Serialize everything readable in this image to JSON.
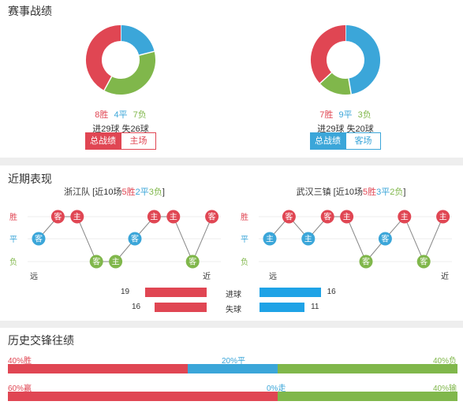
{
  "section1": {
    "title": "赛事战绩",
    "left": {
      "wins": "8胜",
      "draws": "4平",
      "losses": "7负",
      "goals": "进29球 失26球",
      "w": 8,
      "d": 4,
      "l": 7,
      "tab_total": "总战绩",
      "tab_venue": "主场"
    },
    "right": {
      "wins": "7胜",
      "draws": "9平",
      "losses": "3负",
      "goals": "进29球 失20球",
      "w": 7,
      "d": 9,
      "l": 3,
      "tab_total": "总战绩",
      "tab_venue": "客场"
    }
  },
  "section2": {
    "title": "近期表现",
    "axis": {
      "win": "胜",
      "draw": "平",
      "loss": "负",
      "far": "远",
      "near": "近"
    },
    "left": {
      "team": "浙江队",
      "prefix": "[近10场",
      "w": "5胜",
      "d": "2平",
      "l": "3负",
      "suffix": "]",
      "results": [
        {
          "r": "d",
          "v": "客"
        },
        {
          "r": "w",
          "v": "客"
        },
        {
          "r": "w",
          "v": "主"
        },
        {
          "r": "l",
          "v": "客"
        },
        {
          "r": "l",
          "v": "主"
        },
        {
          "r": "d",
          "v": "客"
        },
        {
          "r": "w",
          "v": "主"
        },
        {
          "r": "w",
          "v": "主"
        },
        {
          "r": "l",
          "v": "客"
        },
        {
          "r": "w",
          "v": "客"
        }
      ]
    },
    "right": {
      "team": "武汉三镇",
      "prefix": "[近10场",
      "w": "5胜",
      "d": "3平",
      "l": "2负",
      "suffix": "]",
      "results": [
        {
          "r": "d",
          "v": "主"
        },
        {
          "r": "w",
          "v": "客"
        },
        {
          "r": "d",
          "v": "主"
        },
        {
          "r": "w",
          "v": "客"
        },
        {
          "r": "w",
          "v": "主"
        },
        {
          "r": "l",
          "v": "客"
        },
        {
          "r": "d",
          "v": "客"
        },
        {
          "r": "w",
          "v": "主"
        },
        {
          "r": "l",
          "v": "客"
        },
        {
          "r": "w",
          "v": "主"
        }
      ]
    },
    "goals_label": "进球",
    "conceded_label": "失球",
    "left_goals": "19",
    "left_conceded": "16",
    "right_goals": "16",
    "right_conceded": "11",
    "left_goals_v": 19,
    "left_conceded_v": 16,
    "right_goals_v": 16,
    "right_conceded_v": 11
  },
  "section3": {
    "title": "历史交锋往绩",
    "row1": {
      "left": "40%胜",
      "mid": "20%平",
      "right": "40%负",
      "a": 40,
      "b": 20,
      "c": 40
    },
    "row2": {
      "left": "60%赢",
      "mid": "0%走",
      "right": "40%输",
      "a": 60,
      "b": 0,
      "c": 40
    }
  },
  "colors": {
    "red": "#e04653",
    "blue": "#3ba6d9",
    "green": "#80b74b"
  }
}
